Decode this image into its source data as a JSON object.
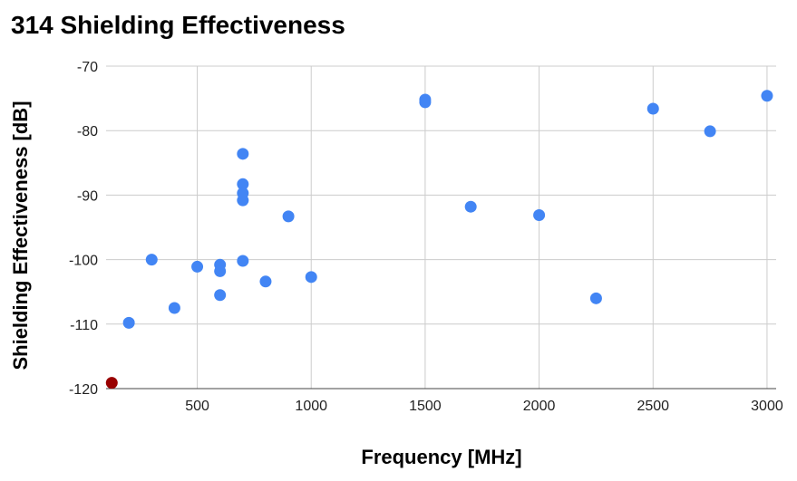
{
  "chart_data": {
    "type": "scatter",
    "title": "314 Shielding Effectiveness",
    "xlabel": "Frequency [MHz]",
    "ylabel": "Shielding Effectiveness [dB]",
    "xlim": [
      100,
      3040
    ],
    "ylim": [
      -120,
      -70
    ],
    "xticks": [
      500,
      1000,
      1500,
      2000,
      2500,
      3000
    ],
    "yticks": [
      -70,
      -80,
      -90,
      -100,
      -110,
      -120
    ],
    "grid": true,
    "legend": "none",
    "series": [
      {
        "color": "#4285f4",
        "points": [
          {
            "x": 200,
            "y": -109.8
          },
          {
            "x": 300,
            "y": -100.0
          },
          {
            "x": 400,
            "y": -107.5
          },
          {
            "x": 500,
            "y": -101.1
          },
          {
            "x": 600,
            "y": -100.8
          },
          {
            "x": 600,
            "y": -101.8
          },
          {
            "x": 600,
            "y": -105.5
          },
          {
            "x": 700,
            "y": -83.6
          },
          {
            "x": 700,
            "y": -88.3
          },
          {
            "x": 700,
            "y": -89.7
          },
          {
            "x": 700,
            "y": -90.8
          },
          {
            "x": 700,
            "y": -100.2
          },
          {
            "x": 800,
            "y": -103.4
          },
          {
            "x": 900,
            "y": -93.3
          },
          {
            "x": 1000,
            "y": -102.7
          },
          {
            "x": 1500,
            "y": -75.2
          },
          {
            "x": 1500,
            "y": -75.6
          },
          {
            "x": 1700,
            "y": -91.8
          },
          {
            "x": 2000,
            "y": -93.1
          },
          {
            "x": 2250,
            "y": -106.0
          },
          {
            "x": 2500,
            "y": -76.6
          },
          {
            "x": 2750,
            "y": -80.1
          },
          {
            "x": 3000,
            "y": -74.6
          }
        ]
      },
      {
        "color": "#990000",
        "points": [
          {
            "x": 125,
            "y": -119.1
          }
        ]
      }
    ]
  }
}
